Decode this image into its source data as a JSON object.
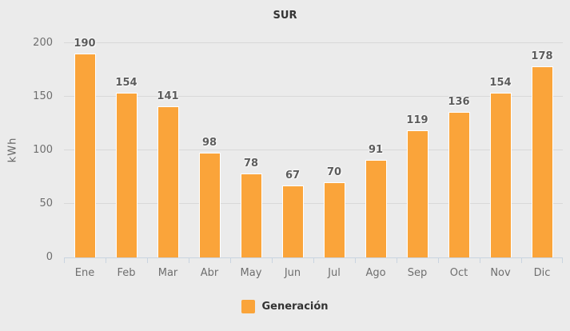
{
  "chart_data": {
    "type": "bar",
    "title": "SUR",
    "xlabel": "",
    "ylabel": "kWh",
    "categories": [
      "Ene",
      "Feb",
      "Mar",
      "Abr",
      "May",
      "Jun",
      "Jul",
      "Ago",
      "Sep",
      "Oct",
      "Nov",
      "Dic"
    ],
    "series": [
      {
        "name": "Generación",
        "values": [
          190,
          154,
          141,
          98,
          78,
          67,
          70,
          91,
          119,
          136,
          154,
          178
        ]
      }
    ],
    "ylim": [
      0,
      200
    ],
    "yticks": [
      0,
      50,
      100,
      150,
      200
    ],
    "grid": true,
    "data_labels": true,
    "legend_position": "bottom-center"
  },
  "colors": {
    "background": "#ebebeb",
    "bar_fill": "#faa43a",
    "bar_border": "#ffffff",
    "gridline": "#d8d8d8",
    "axis_line": "#c9d4e0",
    "tick_label": "#6e6e6e",
    "value_label": "#5c5c5c",
    "title": "#333333",
    "legend_text": "#333333"
  }
}
